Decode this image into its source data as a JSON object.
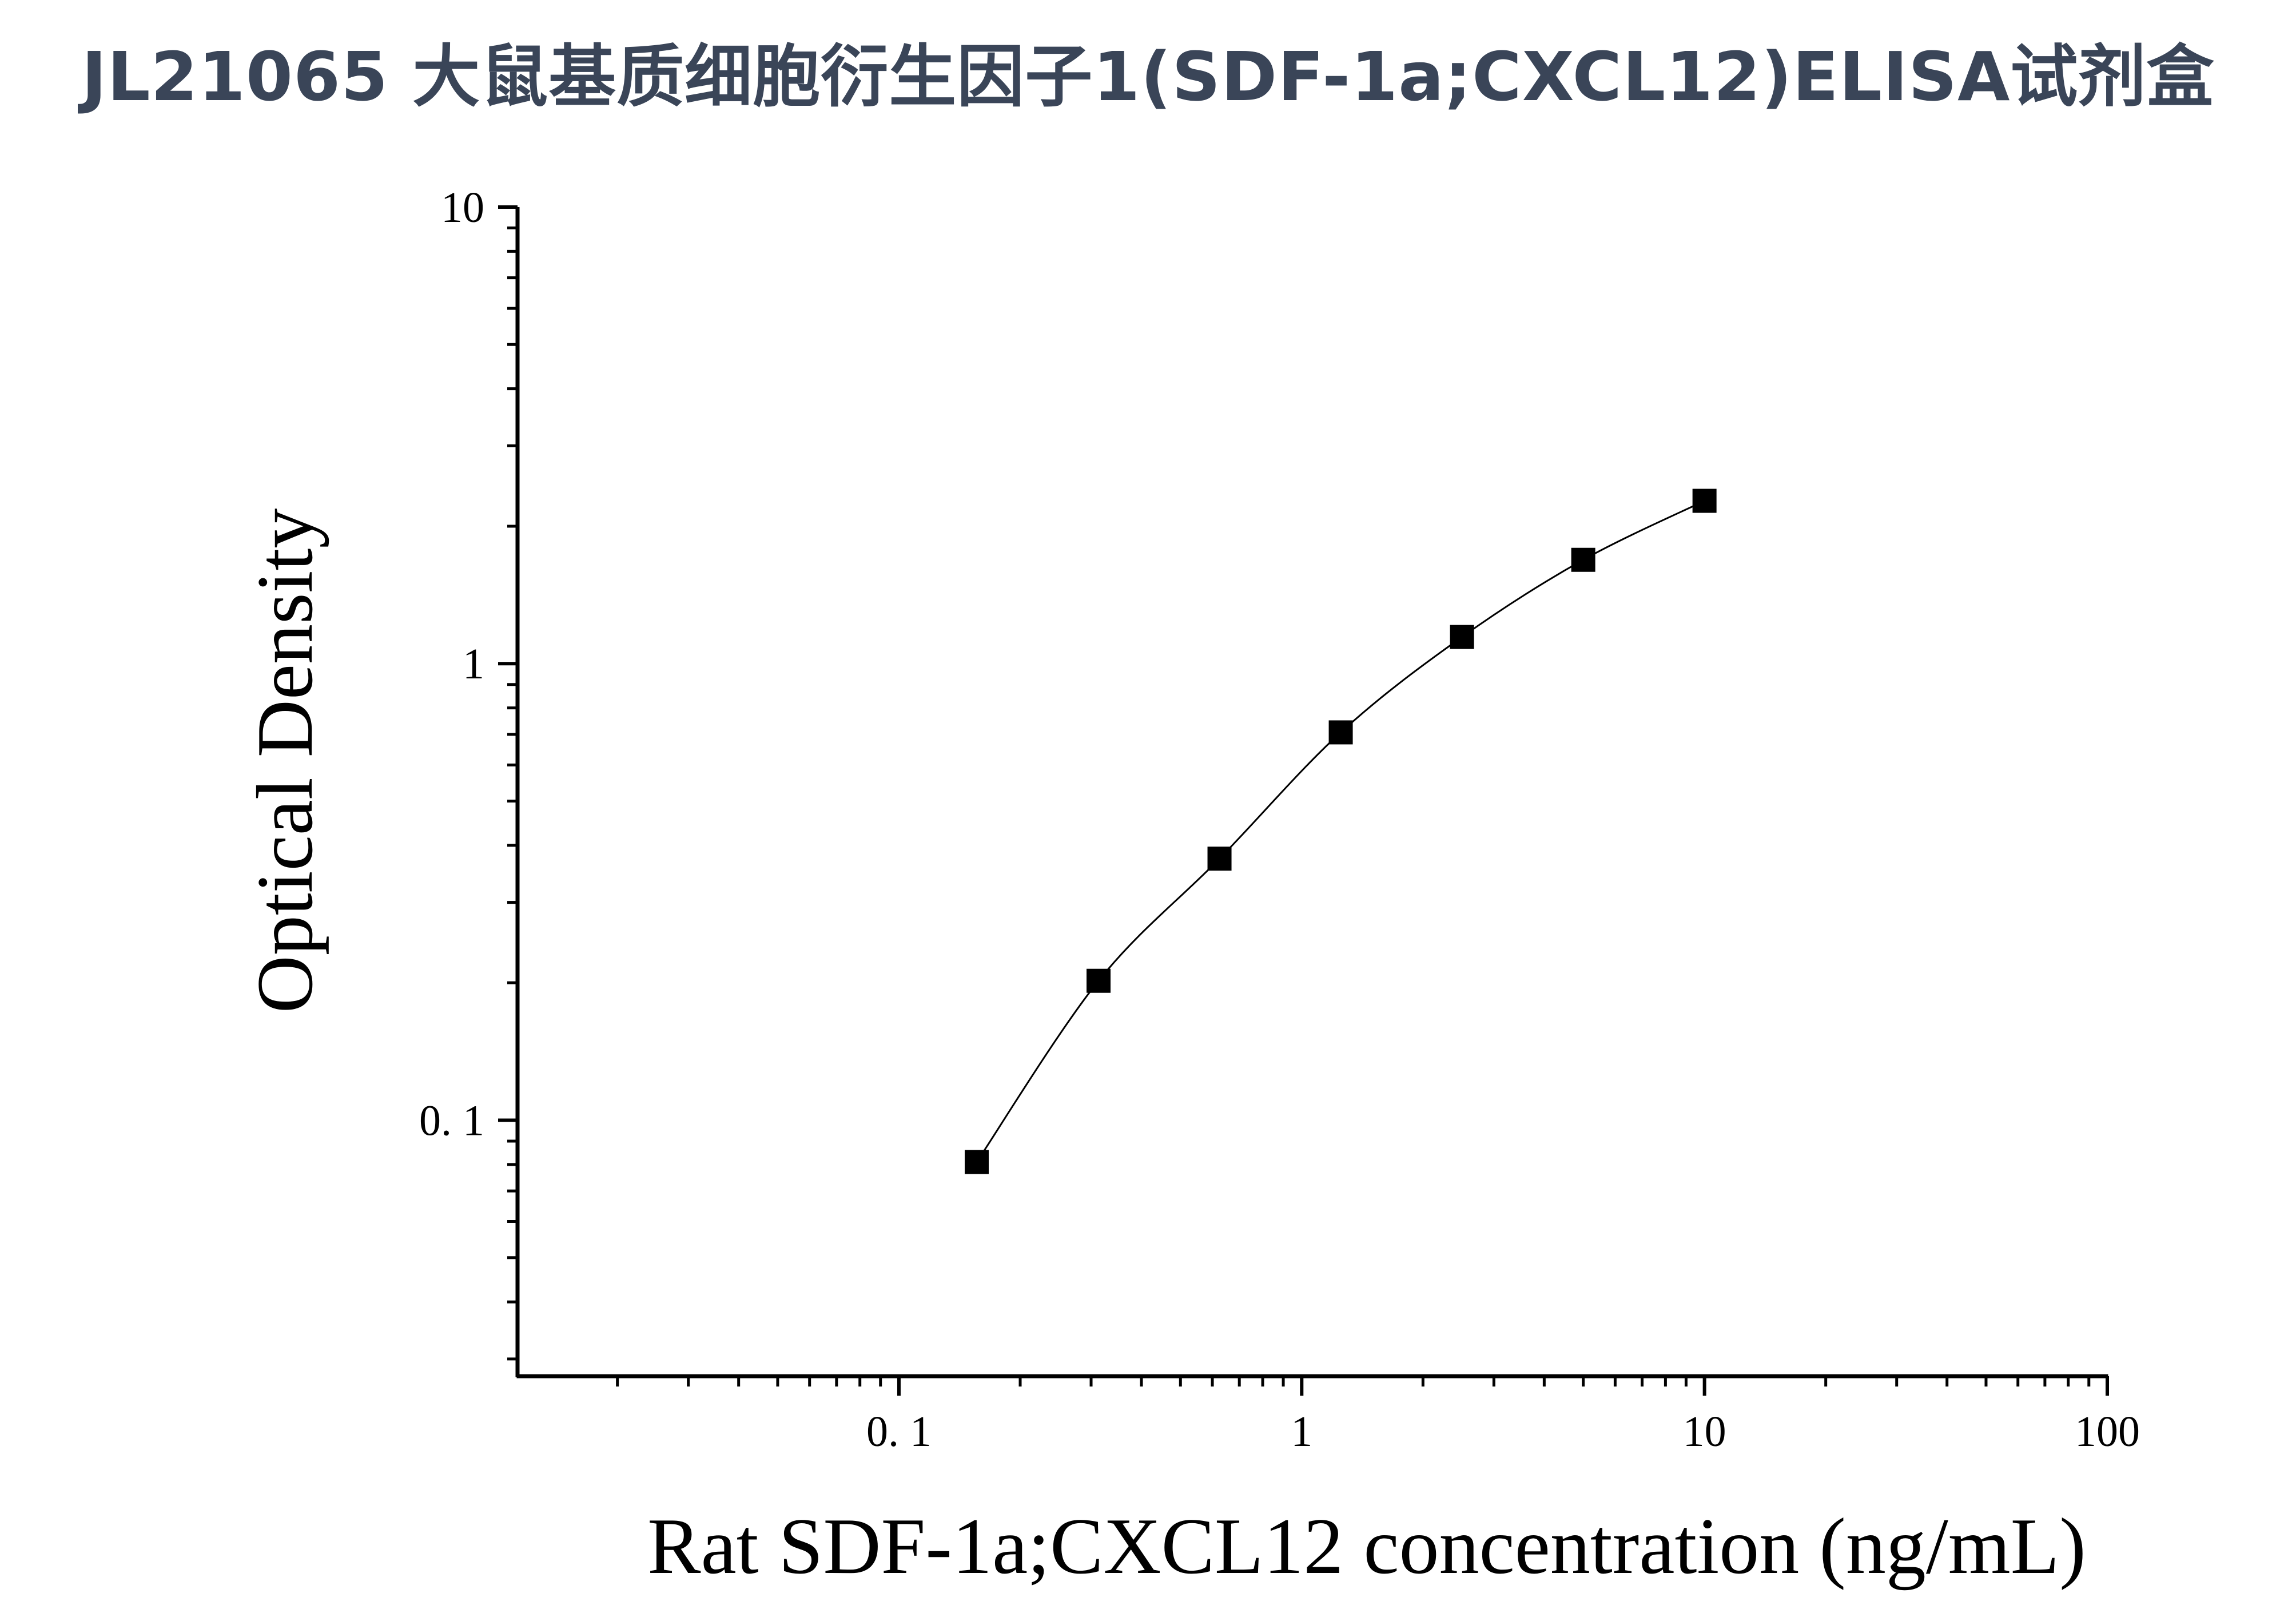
{
  "header": {
    "title": "JL21065 大鼠基质细胞衍生因子1(SDF-1a;CXCL12)ELISA试剂盒",
    "title_color": "#3a4558"
  },
  "chart_data": {
    "type": "scatter",
    "title": "JL21065 大鼠基质细胞衍生因子1(SDF-1a;CXCL12)ELISA试剂盒",
    "xlabel": "Rat SDF-1a;CXCL12 concentration (ng/mL)",
    "ylabel": "Optical Density",
    "xscale": "log",
    "yscale": "log",
    "xlim": [
      0.0113,
      100
    ],
    "ylim": [
      0.0275,
      10
    ],
    "x_ticks": [
      {
        "value": 0.1,
        "label": "0. 1"
      },
      {
        "value": 1,
        "label": "1"
      },
      {
        "value": 10,
        "label": "10"
      },
      {
        "value": 100,
        "label": "100"
      }
    ],
    "y_ticks": [
      {
        "value": 0.1,
        "label": "0. 1"
      },
      {
        "value": 1,
        "label": "1"
      },
      {
        "value": 10,
        "label": "10"
      }
    ],
    "grid": false,
    "legend": "none",
    "marker": "square",
    "fit_curve": true,
    "color": "#000000",
    "series": [
      {
        "x": [
          0.156,
          0.313,
          0.625,
          1.25,
          2.5,
          5,
          10
        ],
        "y": [
          0.081,
          0.202,
          0.374,
          0.707,
          1.144,
          1.688,
          2.273
        ]
      }
    ]
  }
}
